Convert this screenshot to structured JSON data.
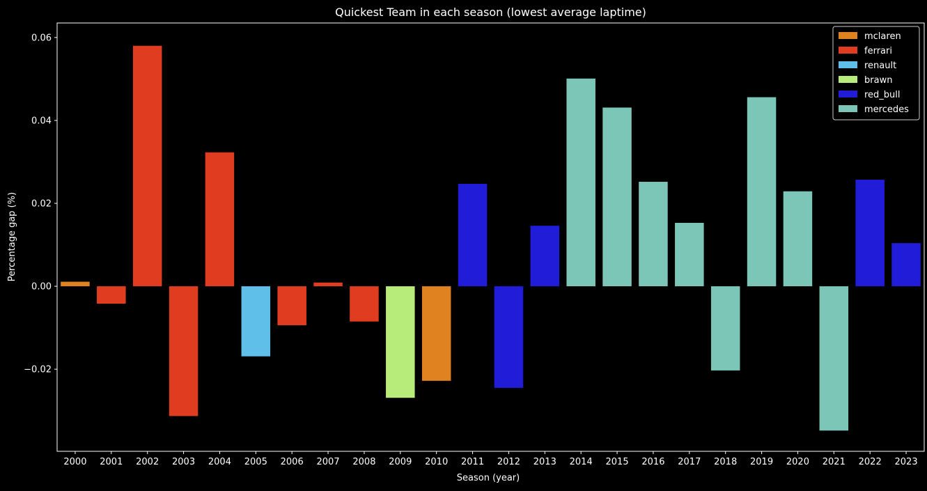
{
  "chart_data": {
    "type": "bar",
    "title": "Quickest Team in each season (lowest average laptime)",
    "xlabel": "Season (year)",
    "ylabel": "Percentage gap (%)",
    "ylim": [
      -0.0398,
      0.0635
    ],
    "yticks": [
      -0.02,
      0.0,
      0.02,
      0.04,
      0.06
    ],
    "ytick_labels": [
      "−0.02",
      "0.00",
      "0.02",
      "0.04",
      "0.06"
    ],
    "grid": false,
    "legend_position": "top-right",
    "categories": [
      "2000",
      "2001",
      "2002",
      "2003",
      "2004",
      "2005",
      "2006",
      "2007",
      "2008",
      "2009",
      "2010",
      "2011",
      "2012",
      "2013",
      "2014",
      "2015",
      "2016",
      "2017",
      "2018",
      "2019",
      "2020",
      "2021",
      "2022",
      "2023"
    ],
    "values": [
      0.0011,
      -0.0042,
      0.058,
      -0.0313,
      0.0323,
      -0.0169,
      -0.0094,
      0.0009,
      -0.0085,
      -0.0269,
      -0.0228,
      0.0247,
      -0.0245,
      0.0146,
      0.0501,
      0.0431,
      0.0252,
      0.0153,
      -0.0203,
      0.0456,
      0.0229,
      -0.0348,
      0.0257,
      0.0104
    ],
    "teams": [
      "mclaren",
      "ferrari",
      "ferrari",
      "ferrari",
      "ferrari",
      "renault",
      "ferrari",
      "ferrari",
      "ferrari",
      "brawn",
      "mclaren",
      "red_bull",
      "red_bull",
      "red_bull",
      "mercedes",
      "mercedes",
      "mercedes",
      "mercedes",
      "mercedes",
      "mercedes",
      "mercedes",
      "mercedes",
      "red_bull",
      "red_bull"
    ],
    "legend": [
      {
        "name": "mclaren",
        "color": "#E0821F"
      },
      {
        "name": "ferrari",
        "color": "#E03D20"
      },
      {
        "name": "renault",
        "color": "#5FBFE9"
      },
      {
        "name": "brawn",
        "color": "#B8EC7A"
      },
      {
        "name": "red_bull",
        "color": "#211CD8"
      },
      {
        "name": "mercedes",
        "color": "#7BC6B6"
      }
    ]
  }
}
